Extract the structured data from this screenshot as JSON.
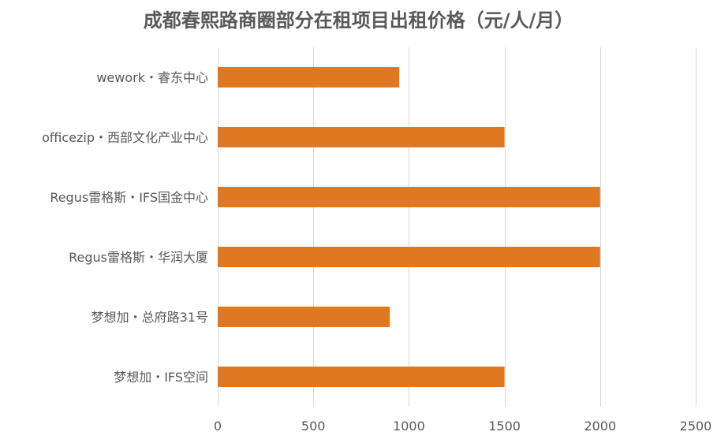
{
  "chart_data": {
    "type": "bar",
    "orientation": "horizontal",
    "title": "成都春熙路商圈部分在租项目出租价格（元/人/月）",
    "categories": [
      "wework・睿东中心",
      "officezip・西部文化产业中心",
      "Regus雷格斯・IFS国金中心",
      "Regus雷格斯・华润大厦",
      "梦想加・总府路31号",
      "梦想加・IFS空间"
    ],
    "values": [
      950,
      1500,
      2000,
      2000,
      900,
      1500
    ],
    "xlim": [
      0,
      2500
    ],
    "xticks": [
      0,
      500,
      1000,
      1500,
      2000,
      2500
    ],
    "grid": "vertical",
    "legend": "none",
    "bar_color": "#E07822",
    "grid_color": "#D9D9D9",
    "text_color": "#595959"
  }
}
